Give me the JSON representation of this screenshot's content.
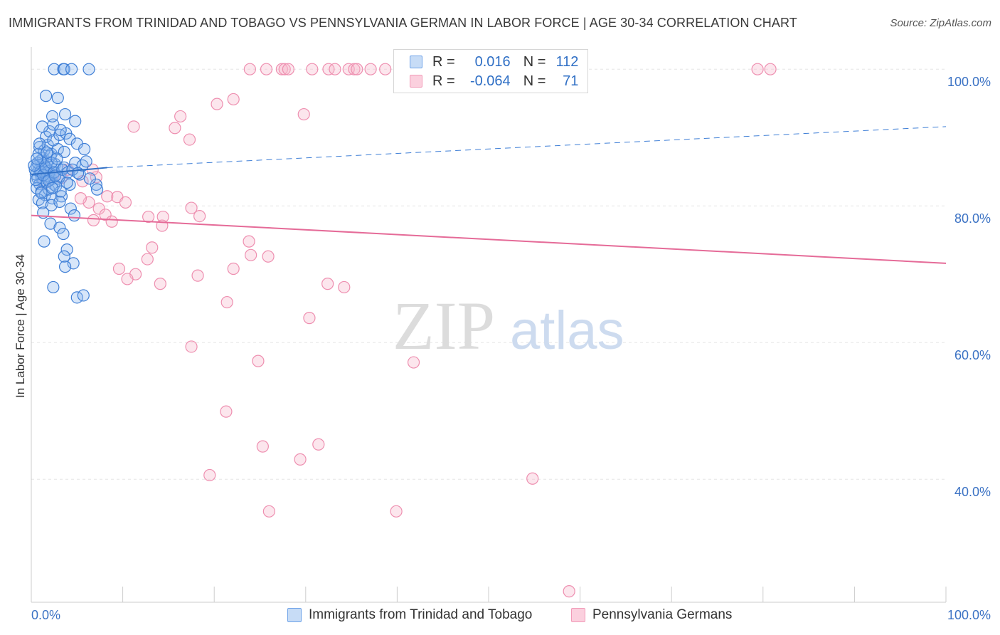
{
  "title": "IMMIGRANTS FROM TRINIDAD AND TOBAGO VS PENNSYLVANIA GERMAN IN LABOR FORCE | AGE 30-34 CORRELATION CHART",
  "source": "Source: ZipAtlas.com",
  "watermark": {
    "zip": "ZIP",
    "atlas": "atlas"
  },
  "legend": {
    "r_label": "R =",
    "n_label": "N =",
    "rows": [
      {
        "r": "0.016",
        "n": "112",
        "color": "#6fa3e8"
      },
      {
        "r": "-0.064",
        "n": "71",
        "color": "#f29bb8"
      }
    ]
  },
  "bottom_legend": [
    {
      "label": "Immigrants from Trinidad and Tobago",
      "color": "#6fa3e8"
    },
    {
      "label": "Pennsylvania Germans",
      "color": "#f29bb8"
    }
  ],
  "chart_data": {
    "type": "scatter",
    "title": "IMMIGRANTS FROM TRINIDAD AND TOBAGO VS PENNSYLVANIA GERMAN IN LABOR FORCE | AGE 30-34 CORRELATION CHART",
    "xlabel": "",
    "ylabel": "In Labor Force | Age 30-34",
    "xlim": [
      0,
      100
    ],
    "ylim": [
      22,
      102
    ],
    "x_tick_labels": [
      "0.0%",
      "100.0%"
    ],
    "y_ticks": [
      100,
      80,
      60,
      40
    ],
    "y_tick_labels": [
      "100.0%",
      "80.0%",
      "60.0%",
      "40.0%"
    ],
    "grid": true,
    "series": [
      {
        "name": "Immigrants from Trinidad and Tobago",
        "color": "#6fa3e8",
        "trend": {
          "x": [
            0,
            8.3
          ],
          "y": [
            84.6,
            85.6
          ],
          "extended": {
            "x": [
              8.3,
              100
            ],
            "y": [
              85.6,
              91.6
            ]
          }
        },
        "points": [
          [
            0.6,
            85.8
          ],
          [
            0.8,
            85.2
          ],
          [
            1.0,
            84.7
          ],
          [
            1.1,
            84.1
          ],
          [
            1.2,
            86.0
          ],
          [
            1.3,
            83.6
          ],
          [
            1.5,
            85.4
          ],
          [
            1.7,
            84.9
          ],
          [
            1.8,
            86.4
          ],
          [
            2.0,
            84.3
          ],
          [
            0.7,
            84.0
          ],
          [
            0.9,
            83.2
          ],
          [
            1.4,
            85.9
          ],
          [
            1.6,
            84.4
          ],
          [
            1.9,
            85.1
          ],
          [
            2.2,
            83.9
          ],
          [
            2.4,
            84.8
          ],
          [
            2.6,
            86.1
          ],
          [
            0.5,
            84.6
          ],
          [
            1.0,
            86.6
          ],
          [
            1.3,
            87.0
          ],
          [
            1.7,
            83.5
          ],
          [
            2.1,
            87.3
          ],
          [
            2.5,
            83.1
          ],
          [
            2.8,
            85.7
          ],
          [
            3.0,
            84.0
          ],
          [
            0.6,
            82.6
          ],
          [
            1.1,
            82.1
          ],
          [
            1.5,
            81.6
          ],
          [
            1.9,
            82.4
          ],
          [
            2.3,
            81.1
          ],
          [
            2.7,
            82.9
          ],
          [
            3.3,
            81.4
          ],
          [
            0.8,
            80.9
          ],
          [
            1.2,
            80.4
          ],
          [
            0.9,
            88.6
          ],
          [
            1.4,
            88.1
          ],
          [
            1.8,
            88.9
          ],
          [
            2.2,
            87.6
          ],
          [
            2.9,
            88.3
          ],
          [
            3.6,
            87.9
          ],
          [
            1.6,
            90.1
          ],
          [
            2.0,
            90.9
          ],
          [
            2.4,
            89.6
          ],
          [
            3.1,
            90.4
          ],
          [
            3.8,
            90.6
          ],
          [
            1.2,
            91.6
          ],
          [
            2.4,
            91.9
          ],
          [
            3.2,
            91.1
          ],
          [
            4.2,
            89.8
          ],
          [
            5.0,
            89.1
          ],
          [
            2.3,
            93.1
          ],
          [
            3.7,
            93.4
          ],
          [
            1.6,
            96.1
          ],
          [
            2.9,
            95.8
          ],
          [
            4.8,
            92.4
          ],
          [
            2.5,
            100.0
          ],
          [
            3.5,
            100.0
          ],
          [
            3.6,
            100.0
          ],
          [
            4.4,
            100.0
          ],
          [
            6.3,
            100.0
          ],
          [
            3.1,
            84.3
          ],
          [
            3.6,
            85.6
          ],
          [
            4.2,
            83.1
          ],
          [
            4.8,
            86.3
          ],
          [
            5.3,
            84.6
          ],
          [
            3.2,
            82.1
          ],
          [
            3.9,
            83.4
          ],
          [
            1.3,
            79.0
          ],
          [
            2.2,
            80.1
          ],
          [
            3.1,
            80.6
          ],
          [
            4.3,
            79.6
          ],
          [
            2.1,
            77.4
          ],
          [
            3.1,
            76.8
          ],
          [
            4.7,
            78.6
          ],
          [
            3.5,
            75.9
          ],
          [
            1.4,
            74.8
          ],
          [
            3.9,
            73.6
          ],
          [
            3.6,
            72.6
          ],
          [
            4.6,
            71.6
          ],
          [
            3.7,
            71.1
          ],
          [
            2.4,
            68.1
          ],
          [
            5.0,
            66.6
          ],
          [
            5.7,
            66.9
          ],
          [
            7.1,
            83.1
          ],
          [
            7.2,
            82.4
          ],
          [
            6.4,
            84.0
          ],
          [
            5.6,
            85.9
          ],
          [
            5.8,
            88.3
          ],
          [
            0.4,
            85.3
          ],
          [
            0.5,
            83.8
          ],
          [
            0.7,
            86.3
          ],
          [
            1.0,
            85.0
          ],
          [
            1.3,
            84.5
          ],
          [
            1.6,
            85.6
          ],
          [
            1.9,
            83.7
          ],
          [
            2.2,
            86.3
          ],
          [
            2.5,
            84.9
          ],
          [
            0.8,
            87.6
          ],
          [
            1.1,
            81.9
          ],
          [
            2.6,
            84.4
          ],
          [
            2.8,
            86.9
          ],
          [
            3.4,
            85.3
          ],
          [
            0.9,
            89.1
          ],
          [
            1.7,
            87.8
          ],
          [
            2.3,
            82.6
          ],
          [
            4.0,
            84.9
          ],
          [
            4.5,
            85.3
          ],
          [
            5.1,
            84.8
          ],
          [
            6.0,
            86.5
          ],
          [
            0.3,
            85.9
          ],
          [
            0.6,
            86.9
          ]
        ]
      },
      {
        "name": "Pennsylvania Germans",
        "color": "#f29bb8",
        "trend": {
          "x": [
            0,
            100
          ],
          "y": [
            78.6,
            71.6
          ]
        },
        "points": [
          [
            23.9,
            100.0
          ],
          [
            25.7,
            100.0
          ],
          [
            27.4,
            100.0
          ],
          [
            27.7,
            100.0
          ],
          [
            28.1,
            100.0
          ],
          [
            30.7,
            100.0
          ],
          [
            32.5,
            100.0
          ],
          [
            33.2,
            100.0
          ],
          [
            34.7,
            100.0
          ],
          [
            35.3,
            100.0
          ],
          [
            35.6,
            100.0
          ],
          [
            37.1,
            100.0
          ],
          [
            38.7,
            100.0
          ],
          [
            46.4,
            100.0
          ],
          [
            79.4,
            100.0
          ],
          [
            80.8,
            100.0
          ],
          [
            22.1,
            95.6
          ],
          [
            20.3,
            94.9
          ],
          [
            29.8,
            93.4
          ],
          [
            16.3,
            93.1
          ],
          [
            11.2,
            91.6
          ],
          [
            15.7,
            91.4
          ],
          [
            17.3,
            89.7
          ],
          [
            3.3,
            84.1
          ],
          [
            5.6,
            83.6
          ],
          [
            7.1,
            84.2
          ],
          [
            8.3,
            81.4
          ],
          [
            9.4,
            81.3
          ],
          [
            6.3,
            80.5
          ],
          [
            10.3,
            80.5
          ],
          [
            17.5,
            79.7
          ],
          [
            7.4,
            79.6
          ],
          [
            8.1,
            78.7
          ],
          [
            12.8,
            78.4
          ],
          [
            14.4,
            78.4
          ],
          [
            18.4,
            78.5
          ],
          [
            6.8,
            77.9
          ],
          [
            8.8,
            77.7
          ],
          [
            14.3,
            77.1
          ],
          [
            23.8,
            74.8
          ],
          [
            13.2,
            73.9
          ],
          [
            24.0,
            72.8
          ],
          [
            25.9,
            72.6
          ],
          [
            12.7,
            72.2
          ],
          [
            9.6,
            70.8
          ],
          [
            22.1,
            70.8
          ],
          [
            11.4,
            70.0
          ],
          [
            18.2,
            69.8
          ],
          [
            10.5,
            69.3
          ],
          [
            14.1,
            68.6
          ],
          [
            32.4,
            68.6
          ],
          [
            34.2,
            68.1
          ],
          [
            21.4,
            65.9
          ],
          [
            30.4,
            63.6
          ],
          [
            17.5,
            59.4
          ],
          [
            24.8,
            57.3
          ],
          [
            41.8,
            57.1
          ],
          [
            21.3,
            49.9
          ],
          [
            25.3,
            44.8
          ],
          [
            31.4,
            45.1
          ],
          [
            29.4,
            42.9
          ],
          [
            19.5,
            40.6
          ],
          [
            54.8,
            40.1
          ],
          [
            26.0,
            35.3
          ],
          [
            39.9,
            35.3
          ],
          [
            58.8,
            23.6
          ],
          [
            2.4,
            84.4
          ],
          [
            4.0,
            85.3
          ],
          [
            5.4,
            81.1
          ],
          [
            6.7,
            85.3
          ],
          [
            1.4,
            83.3
          ]
        ]
      }
    ]
  }
}
